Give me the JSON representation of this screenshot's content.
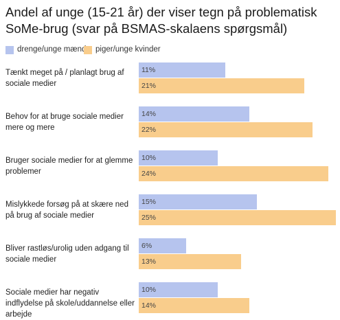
{
  "chart_data": {
    "type": "bar",
    "orientation": "horizontal",
    "title": "Andel af unge (15-21 år) der viser tegn på problematisk SoMe-brug (svar på BSMAS-skalaens spørgsmål)",
    "categories": [
      "Tænkt meget på / planlagt brug af sociale medier",
      "Behov for at bruge sociale medier mere og mere",
      "Bruger sociale medier for at glemme problemer",
      "Mislykkede forsøg på at skære ned på brug af sociale medier",
      "Bliver rastløs/urolig uden adgang til sociale medier",
      "Sociale medier har negativ indflydelse på skole/uddannelse eller arbejde"
    ],
    "series": [
      {
        "name": "drenge/unge mænd",
        "color": "#b6c4ee",
        "values": [
          11,
          14,
          10,
          15,
          6,
          10
        ],
        "value_labels": [
          "11%",
          "14%",
          "10%",
          "15%",
          "6%",
          "10%"
        ]
      },
      {
        "name": "piger/unge kvinder",
        "color": "#f9cd8c",
        "values": [
          21,
          22,
          24,
          25,
          13,
          14
        ],
        "value_labels": [
          "21%",
          "22%",
          "24%",
          "25%",
          "13%",
          "14%"
        ]
      }
    ],
    "legend": "top-left"
  }
}
